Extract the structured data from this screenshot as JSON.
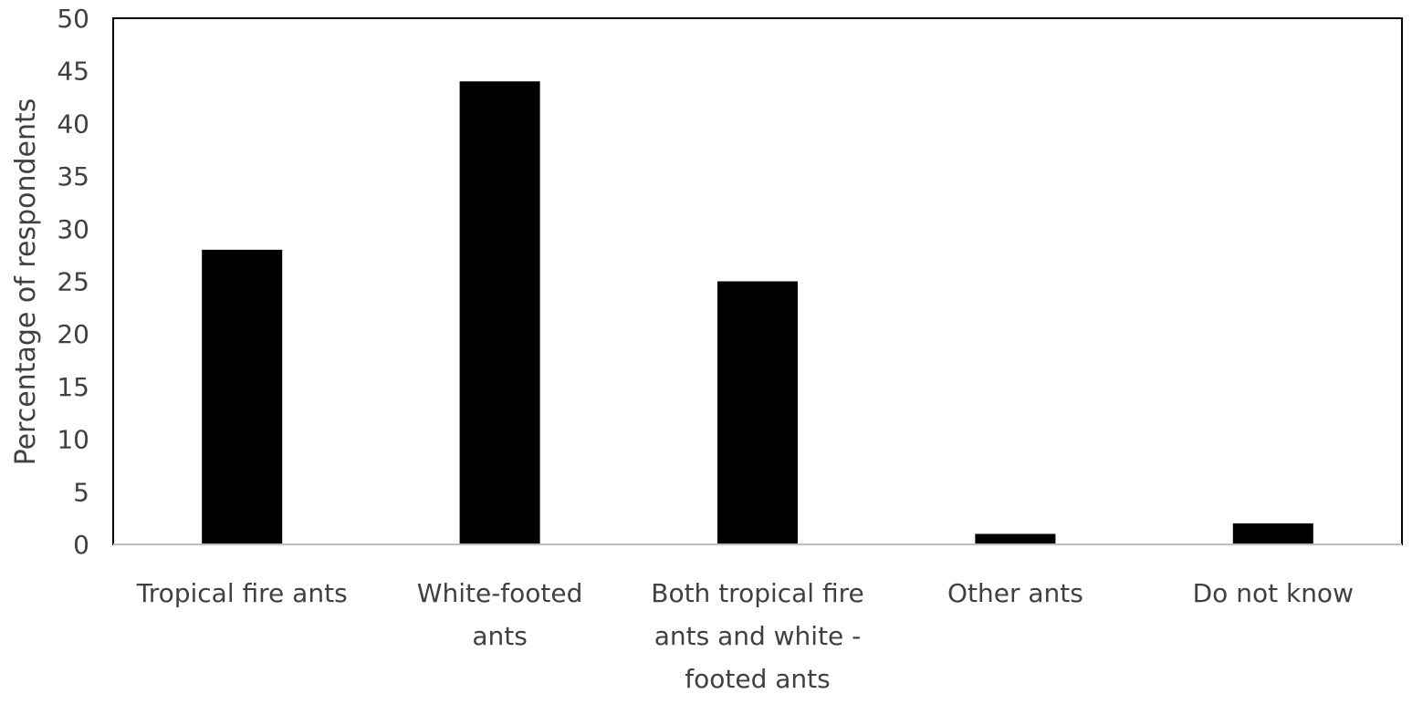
{
  "chart_data": {
    "type": "bar",
    "title": "",
    "xlabel": "",
    "ylabel": "Percentage of respondents",
    "ylim": [
      0,
      50
    ],
    "yticks": [
      0,
      5,
      10,
      15,
      20,
      25,
      30,
      35,
      40,
      45,
      50
    ],
    "grid": false,
    "legend": "none",
    "bar_color": "#000000",
    "categories": [
      [
        "Tropical fire ants"
      ],
      [
        "White-footed",
        "ants"
      ],
      [
        "Both tropical fire",
        "ants and white -",
        "footed ants"
      ],
      [
        "Other ants"
      ],
      [
        "Do not know"
      ]
    ],
    "values": [
      28,
      44,
      25,
      1,
      2
    ]
  }
}
